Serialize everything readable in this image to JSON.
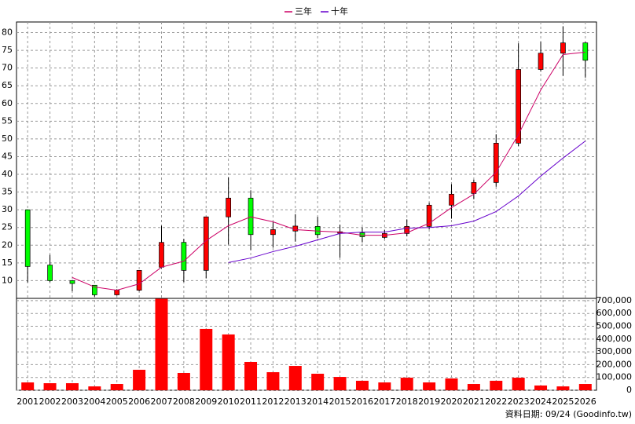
{
  "chart_data": [
    {
      "type": "candlestick",
      "categories": [
        "2001",
        "2002",
        "2003",
        "2004",
        "2005",
        "2006",
        "2007",
        "2008",
        "2009",
        "2010",
        "2011",
        "2012",
        "2013",
        "2014",
        "2015",
        "2016",
        "2017",
        "2018",
        "2019",
        "2020",
        "2021",
        "2022",
        "2023",
        "2024",
        "2025",
        "2026"
      ],
      "open": [
        30,
        14.4,
        10,
        8.7,
        6,
        7.3,
        13.8,
        20.8,
        12.9,
        28,
        33.3,
        23,
        24,
        25.3,
        23.4,
        23.5,
        22.2,
        23.3,
        25.3,
        31.3,
        34.6,
        37.7,
        48.8,
        69.6,
        74.2,
        77.1
      ],
      "high": [
        30,
        17.3,
        10.2,
        8.7,
        7.6,
        12.9,
        25.5,
        21.8,
        28,
        39.2,
        35.5,
        26.5,
        28.8,
        28,
        25.8,
        25,
        24.3,
        27.3,
        32,
        37.2,
        38.5,
        51.3,
        77,
        77.4,
        81.8,
        77.3
      ],
      "low": [
        9.5,
        9.6,
        7,
        5.5,
        5.8,
        7,
        13.5,
        9.6,
        10.7,
        20.2,
        18.6,
        19.3,
        21,
        22,
        16.5,
        20.8,
        21.8,
        22.5,
        24.5,
        27.5,
        33,
        36.5,
        48,
        69,
        67.8,
        67.3
      ],
      "close": [
        14,
        10,
        9.2,
        6,
        7.3,
        12.9,
        20.8,
        12.9,
        28,
        33.3,
        23,
        24.4,
        25.4,
        23,
        23.8,
        22.4,
        23.3,
        25.3,
        31.3,
        34.4,
        37.7,
        48.8,
        69.6,
        74.2,
        77.1,
        72.2
      ],
      "up_color": "#ff0000",
      "down_color": "#00ff00",
      "series": [
        {
          "name": "三年",
          "color": "#cc0066",
          "values": [
            null,
            null,
            10.9,
            8.2,
            7.3,
            9.1,
            13.8,
            15.5,
            21.3,
            25.5,
            28,
            26.6,
            24.4,
            24,
            23.7,
            22.8,
            22.8,
            23.5,
            26.2,
            30.6,
            34.4,
            40.6,
            51.2,
            63.8,
            73.8,
            74.5
          ]
        },
        {
          "name": "十年",
          "color": "#6600cc",
          "values": [
            null,
            null,
            null,
            null,
            null,
            null,
            null,
            null,
            null,
            15.1,
            16.4,
            18.2,
            19.7,
            21.5,
            23.3,
            23.7,
            23.7,
            24.8,
            25,
            25.5,
            26.8,
            29.5,
            33.9,
            39.5,
            44.6,
            49.4
          ]
        }
      ],
      "ylim": [
        5,
        83
      ],
      "yticks": [
        10,
        15,
        20,
        25,
        30,
        35,
        40,
        45,
        50,
        55,
        60,
        65,
        70,
        75,
        80
      ],
      "grid": true
    },
    {
      "type": "bar",
      "values": [
        61000,
        55000,
        55000,
        30000,
        49000,
        160000,
        715000,
        135000,
        479000,
        436000,
        221000,
        141000,
        190000,
        129000,
        104000,
        74000,
        61000,
        98000,
        61000,
        92000,
        49000,
        74000,
        98000,
        37000,
        30000,
        49000
      ],
      "color": "#ff0000",
      "ylim": [
        0,
        718000
      ],
      "yticks": [
        0,
        {
          "value": 100000,
          "label": "100,000"
        },
        {
          "value": 200000,
          "label": "200,000"
        },
        {
          "value": 300000,
          "label": "300,000"
        },
        {
          "value": 400000,
          "label": "400,000"
        },
        {
          "value": 500000,
          "label": "500,000"
        },
        {
          "value": 600000,
          "label": "600,000"
        },
        {
          "value": 700000,
          "label": "700,000"
        }
      ],
      "grid": true,
      "note": "資料日期: 09/24  (Goodinfo.tw)"
    }
  ]
}
